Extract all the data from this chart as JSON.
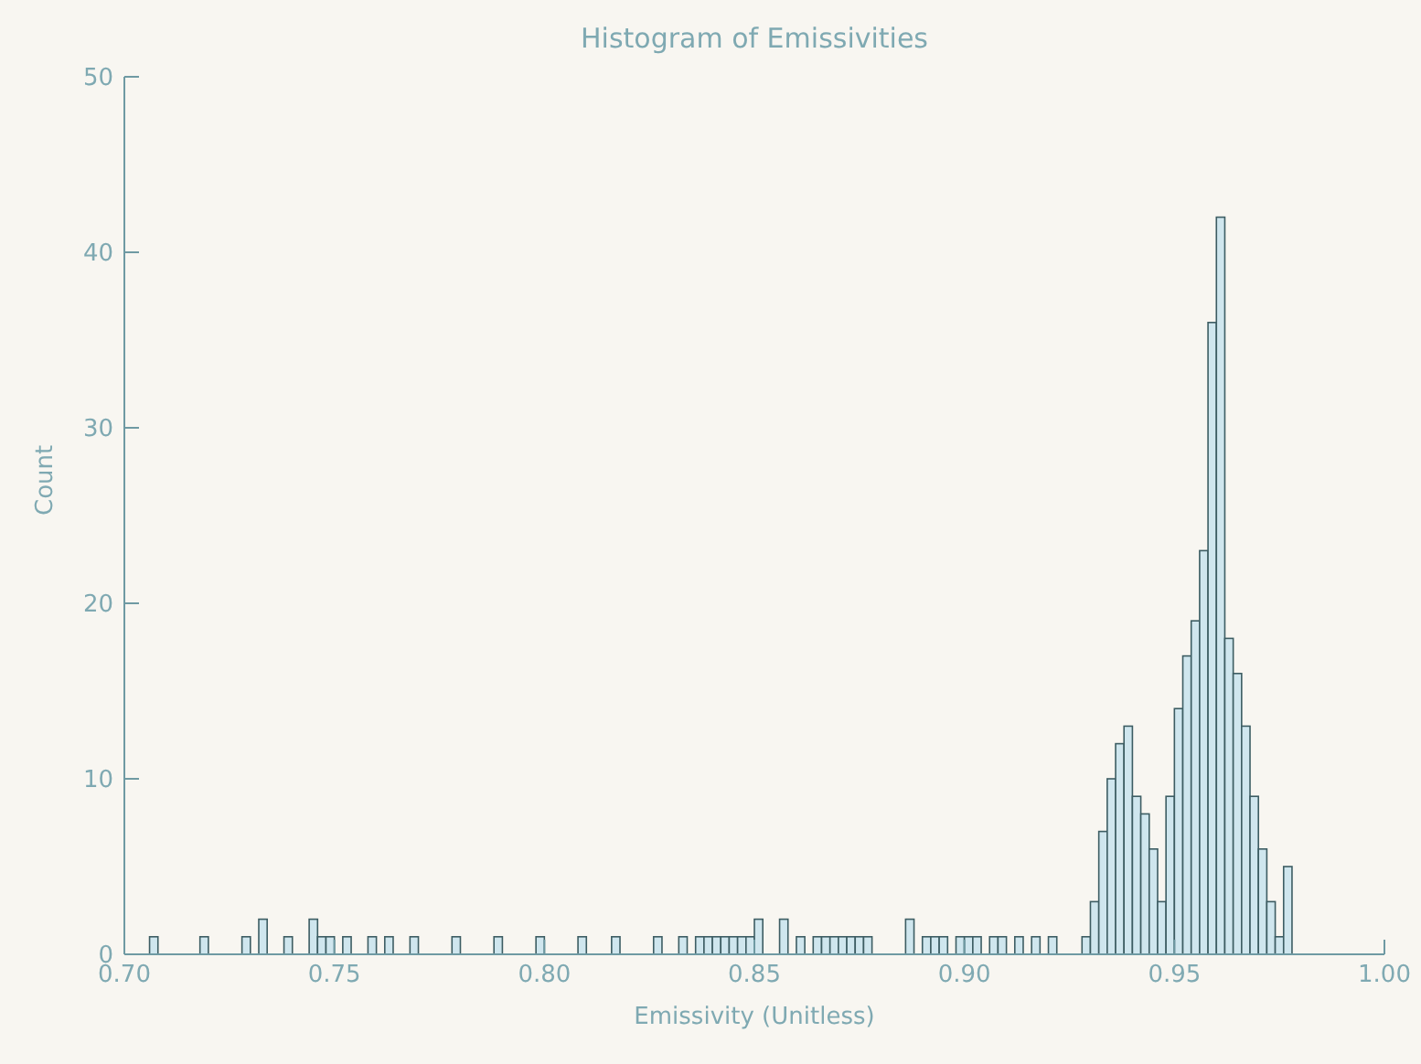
{
  "chart_data": {
    "type": "histogram",
    "title": "Histogram of Emissivities",
    "xlabel": "Emissivity (Unitless)",
    "ylabel": "Count",
    "bins": [
      0.7,
      0.702,
      0.704,
      0.706,
      0.708,
      0.71,
      0.712,
      0.714,
      0.716,
      0.718,
      0.72,
      0.722,
      0.724,
      0.726,
      0.728,
      0.73,
      0.732,
      0.734,
      0.736,
      0.738,
      0.74,
      0.742,
      0.744,
      0.746,
      0.748,
      0.75,
      0.752,
      0.754,
      0.756,
      0.758,
      0.76,
      0.762,
      0.764,
      0.766,
      0.768,
      0.77,
      0.772,
      0.774,
      0.776,
      0.778,
      0.78,
      0.782,
      0.784,
      0.786,
      0.788,
      0.79,
      0.792,
      0.794,
      0.796,
      0.798,
      0.8,
      0.802,
      0.804,
      0.806,
      0.808,
      0.81,
      0.812,
      0.814,
      0.816,
      0.818,
      0.82,
      0.822,
      0.824,
      0.826,
      0.828,
      0.83,
      0.832,
      0.834,
      0.836,
      0.838,
      0.84,
      0.842,
      0.844,
      0.846,
      0.848,
      0.85,
      0.852,
      0.854,
      0.856,
      0.858,
      0.86,
      0.862,
      0.864,
      0.866,
      0.868,
      0.87,
      0.872,
      0.874,
      0.876,
      0.878,
      0.88,
      0.882,
      0.884,
      0.886,
      0.888,
      0.89,
      0.892,
      0.894,
      0.896,
      0.898,
      0.9,
      0.902,
      0.904,
      0.906,
      0.908,
      0.91,
      0.912,
      0.914,
      0.916,
      0.918,
      0.92,
      0.922,
      0.924,
      0.926,
      0.928,
      0.93,
      0.932,
      0.934,
      0.936,
      0.938,
      0.94,
      0.942,
      0.944,
      0.946,
      0.948,
      0.95,
      0.952,
      0.954,
      0.956,
      0.958,
      0.96,
      0.962,
      0.964,
      0.966,
      0.968,
      0.97,
      0.972,
      0.974,
      0.976,
      0.978,
      0.98,
      0.982,
      0.984,
      0.986,
      0.988,
      0.99,
      0.992,
      0.994,
      0.996,
      0.998,
      1.0
    ],
    "values": [
      0,
      0,
      0,
      1,
      0,
      0,
      0,
      0,
      0,
      1,
      0,
      0,
      0,
      0,
      1,
      0,
      2,
      0,
      0,
      1,
      0,
      0,
      2,
      1,
      1,
      0,
      1,
      0,
      0,
      1,
      0,
      1,
      0,
      0,
      1,
      0,
      0,
      0,
      0,
      1,
      0,
      0,
      0,
      0,
      1,
      0,
      0,
      0,
      0,
      1,
      0,
      0,
      0,
      0,
      1,
      0,
      0,
      0,
      1,
      0,
      0,
      0,
      0,
      1,
      0,
      0,
      1,
      0,
      1,
      1,
      1,
      1,
      1,
      1,
      1,
      2,
      0,
      0,
      2,
      0,
      1,
      0,
      1,
      1,
      1,
      1,
      1,
      1,
      1,
      0,
      0,
      0,
      0,
      2,
      0,
      1,
      1,
      1,
      0,
      1,
      1,
      1,
      0,
      1,
      1,
      0,
      1,
      0,
      1,
      0,
      1,
      0,
      0,
      0,
      1,
      3,
      7,
      10,
      12,
      13,
      9,
      8,
      6,
      3,
      9,
      14,
      17,
      19,
      23,
      36,
      42,
      18,
      16,
      13,
      9,
      6,
      3,
      1,
      5,
      0,
      0,
      0,
      0,
      0,
      0,
      0,
      0,
      0,
      0,
      0
    ],
    "color": "#cfe6ee",
    "xlim": [
      0.7,
      1.0
    ],
    "xticks": [
      {
        "value": 0.7,
        "label": "0.70"
      },
      {
        "value": 0.75,
        "label": "0.75"
      },
      {
        "value": 0.8,
        "label": "0.80"
      },
      {
        "value": 0.85,
        "label": "0.85"
      },
      {
        "value": 0.9,
        "label": "0.90"
      },
      {
        "value": 0.95,
        "label": "0.95"
      },
      {
        "value": 1.0,
        "label": "1.00"
      }
    ],
    "ylim": [
      0,
      50
    ],
    "yticks": [
      0,
      10,
      20,
      30,
      40,
      50
    ],
    "grid": false
  }
}
